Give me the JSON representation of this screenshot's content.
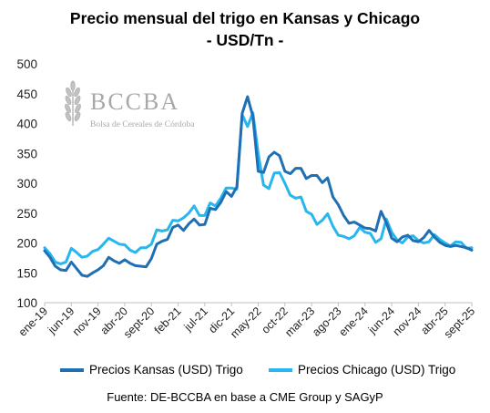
{
  "chart_data": {
    "type": "line",
    "title": "Precio mensual del trigo en Kansas y Chicago",
    "subtitle": "- USD/Tn -",
    "ylim": [
      100,
      500
    ],
    "yticks": [
      100,
      150,
      200,
      250,
      300,
      350,
      400,
      450,
      500
    ],
    "grid": false,
    "legend_position": "bottom",
    "x": [
      "ene-19",
      "feb-19",
      "mar-19",
      "abr-19",
      "may-19",
      "jun-19",
      "jul-19",
      "ago-19",
      "sept-19",
      "oct-19",
      "nov-19",
      "dic-19",
      "ene-20",
      "feb-20",
      "mar-20",
      "abr-20",
      "may-20",
      "jun-20",
      "jul-20",
      "ago-20",
      "sept-20",
      "oct-20",
      "nov-20",
      "dic-20",
      "ene-21",
      "feb-21",
      "mar-21",
      "abr-21",
      "may-21",
      "jun-21",
      "jul-21",
      "ago-21",
      "sept-21",
      "oct-21",
      "nov-21",
      "dic-21",
      "ene-22",
      "feb-22",
      "mar-22",
      "abr-22",
      "may-22",
      "jun-22",
      "jul-22",
      "ago-22",
      "sept-22",
      "oct-22",
      "nov-22",
      "dic-22",
      "ene-23",
      "feb-23",
      "mar-23",
      "abr-23",
      "may-23",
      "jun-23",
      "jul-23",
      "ago-23",
      "sept-23",
      "oct-23",
      "nov-23",
      "dic-23",
      "ene-24",
      "feb-24",
      "mar-24",
      "abr-24",
      "may-24",
      "jun-24",
      "jul-24",
      "ago-24",
      "sept-24",
      "oct-24",
      "nov-24",
      "dic-24",
      "ene-25",
      "feb-25",
      "mar-25",
      "abr-25",
      "may-25",
      "jun-25",
      "jul-25",
      "ago-25",
      "sept-25"
    ],
    "x_tick_labels": [
      "ene-19",
      "jun-19",
      "nov-19",
      "abr-20",
      "sept-20",
      "feb-21",
      "jul-21",
      "dic-21",
      "may-22",
      "oct-22",
      "mar-23",
      "ago-23",
      "ene-24",
      "jun-24",
      "nov-24",
      "abr-25",
      "sept-25"
    ],
    "x_tick_step": 5,
    "series": [
      {
        "name": "Precios Kansas (USD) Trigo",
        "color": "#1f6fb4",
        "values": [
          187,
          176,
          161,
          155,
          154,
          168,
          157,
          146,
          144,
          150,
          155,
          162,
          176,
          170,
          166,
          172,
          166,
          162,
          161,
          160,
          174,
          198,
          203,
          206,
          226,
          230,
          221,
          232,
          240,
          230,
          231,
          258,
          256,
          268,
          286,
          278,
          294,
          417,
          445,
          412,
          320,
          318,
          344,
          352,
          346,
          320,
          316,
          325,
          325,
          308,
          313,
          313,
          301,
          309,
          277,
          264,
          246,
          233,
          235,
          230,
          225,
          224,
          220,
          253,
          234,
          208,
          202,
          210,
          213,
          204,
          202,
          209,
          221,
          210,
          201,
          196,
          194,
          196,
          194,
          192,
          188
        ]
      },
      {
        "name": "Precios Chicago (USD) Trigo",
        "color": "#27b6ee",
        "values": [
          192,
          182,
          168,
          165,
          168,
          191,
          184,
          176,
          178,
          186,
          189,
          198,
          208,
          203,
          198,
          197,
          188,
          184,
          192,
          192,
          198,
          222,
          220,
          222,
          238,
          237,
          242,
          250,
          262,
          246,
          246,
          267,
          262,
          275,
          292,
          292,
          290,
          415,
          395,
          418,
          350,
          297,
          291,
          317,
          318,
          300,
          280,
          275,
          277,
          253,
          248,
          231,
          238,
          249,
          228,
          213,
          211,
          207,
          212,
          226,
          218,
          216,
          201,
          207,
          240,
          218,
          205,
          200,
          210,
          212,
          204,
          200,
          202,
          214,
          206,
          200,
          195,
          202,
          201,
          191,
          192
        ]
      }
    ]
  },
  "logo": {
    "name": "BCCBA",
    "tagline": "Bolsa de Cereales de Córdoba"
  },
  "source": "Fuente: DE-BCCBA en base a CME Group y SAGyP"
}
